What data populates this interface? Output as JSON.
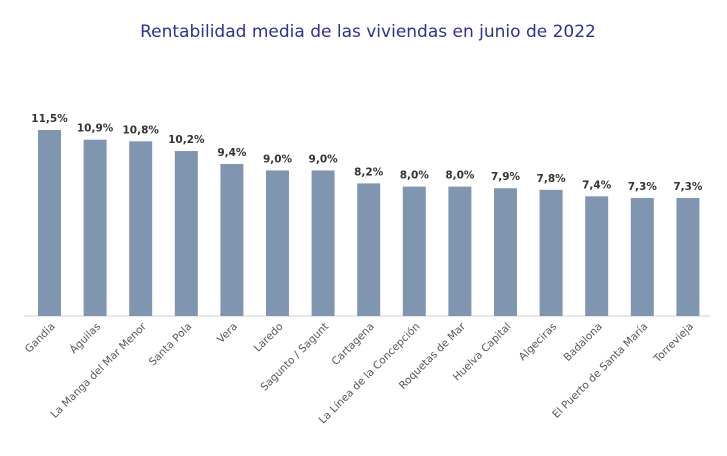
{
  "chart_data": {
    "type": "bar",
    "title": "Rentabilidad media de las viviendas en junio de 2022",
    "xlabel": "",
    "ylabel": "",
    "ylim": [
      0,
      11.5
    ],
    "grid": false,
    "categories": [
      "Gandia",
      "Águilas",
      "La Manga del Mar Menor",
      "Santa Pola",
      "Vera",
      "Laredo",
      "Sagunto / Sagunt",
      "Cartagena",
      "La Línea de la Concepción",
      "Roquetas de Mar",
      "Huelva Capital",
      "Algeciras",
      "Badalona",
      "El Puerto de Santa María",
      "Torrevieja"
    ],
    "values": [
      11.5,
      10.9,
      10.8,
      10.2,
      9.4,
      9.0,
      9.0,
      8.2,
      8.0,
      8.0,
      7.9,
      7.8,
      7.4,
      7.3,
      7.3
    ],
    "data_labels": [
      "11,5%",
      "10,9%",
      "10,8%",
      "10,2%",
      "9,4%",
      "9,0%",
      "9,0%",
      "8,2%",
      "8,0%",
      "8,0%",
      "7,9%",
      "7,8%",
      "7,4%",
      "7,3%",
      "7,3%"
    ],
    "bar_color": "#8096b0",
    "title_color": "#2e3192"
  }
}
